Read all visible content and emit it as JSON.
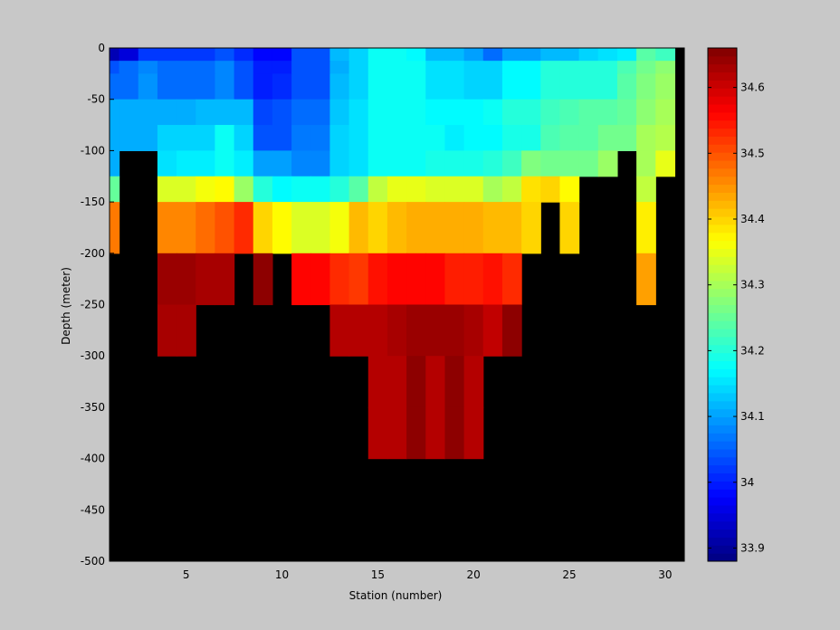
{
  "chart_data": {
    "type": "heatmap",
    "xlabel": "Station (number)",
    "ylabel": "Depth (meter)",
    "xlim": [
      1,
      31
    ],
    "ylim": [
      -500,
      0
    ],
    "x_ticks": [
      5,
      10,
      15,
      20,
      25,
      30
    ],
    "y_ticks": [
      0,
      -50,
      -100,
      -150,
      -200,
      -250,
      -300,
      -350,
      -400,
      -450,
      -500
    ],
    "stations": [
      1,
      2,
      3,
      4,
      5,
      6,
      7,
      8,
      9,
      10,
      11,
      12,
      13,
      14,
      15,
      16,
      17,
      18,
      19,
      20,
      21,
      22,
      23,
      24,
      25,
      26,
      27,
      28,
      29,
      30
    ],
    "depth_bins": [
      0,
      -12.5,
      -25,
      -50,
      -75,
      -100,
      -125,
      -150,
      -200,
      -250,
      -300,
      -350,
      -400
    ],
    "masked_color": "#000000",
    "values": [
      [
        33.92,
        33.95,
        34.02,
        34.02,
        34.02,
        34.02,
        34.04,
        34.01,
        33.98,
        33.98,
        34.04,
        34.04,
        34.12,
        34.14,
        34.18,
        34.18,
        34.17,
        34.12,
        34.12,
        34.1,
        34.06,
        34.1,
        34.1,
        34.12,
        34.12,
        34.14,
        34.15,
        34.16,
        34.24,
        34.22
      ],
      [
        34.04,
        34.06,
        34.08,
        34.06,
        34.06,
        34.06,
        34.08,
        34.04,
        34.0,
        34.0,
        34.04,
        34.04,
        34.11,
        34.14,
        34.18,
        34.18,
        34.18,
        34.15,
        34.15,
        34.14,
        34.14,
        34.17,
        34.17,
        34.2,
        34.2,
        34.2,
        34.2,
        34.23,
        34.26,
        34.28
      ],
      [
        34.06,
        34.06,
        34.09,
        34.06,
        34.06,
        34.06,
        34.08,
        34.04,
        34.0,
        34.01,
        34.04,
        34.04,
        34.12,
        34.14,
        34.18,
        34.18,
        34.18,
        34.15,
        34.15,
        34.14,
        34.14,
        34.17,
        34.17,
        34.2,
        34.2,
        34.2,
        34.2,
        34.24,
        34.27,
        34.29
      ],
      [
        34.11,
        34.11,
        34.11,
        34.11,
        34.11,
        34.12,
        34.12,
        34.12,
        34.03,
        34.04,
        34.06,
        34.06,
        34.13,
        34.15,
        34.18,
        34.18,
        34.18,
        34.17,
        34.17,
        34.17,
        34.18,
        34.2,
        34.2,
        34.22,
        34.23,
        34.24,
        34.24,
        34.25,
        34.28,
        34.3
      ],
      [
        34.11,
        34.11,
        34.11,
        34.14,
        34.14,
        34.14,
        34.18,
        34.14,
        34.04,
        34.04,
        34.07,
        34.07,
        34.14,
        34.15,
        34.18,
        34.18,
        34.18,
        34.18,
        34.16,
        34.17,
        34.17,
        34.19,
        34.19,
        34.23,
        34.24,
        34.24,
        34.26,
        34.26,
        34.3,
        34.31
      ],
      [
        34.11,
        null,
        null,
        34.15,
        34.16,
        34.16,
        34.18,
        34.16,
        34.1,
        34.1,
        34.08,
        34.08,
        34.14,
        34.15,
        34.18,
        34.18,
        34.18,
        34.19,
        34.19,
        34.19,
        34.2,
        34.22,
        34.27,
        34.26,
        34.26,
        34.26,
        34.29,
        null,
        34.3,
        34.35
      ],
      [
        34.25,
        null,
        null,
        34.34,
        34.34,
        34.36,
        34.37,
        34.29,
        34.2,
        34.17,
        34.18,
        34.18,
        34.2,
        34.24,
        34.32,
        34.35,
        34.35,
        34.34,
        34.34,
        34.34,
        34.3,
        34.32,
        34.39,
        34.4,
        34.37,
        null,
        null,
        null,
        34.32,
        null
      ],
      [
        34.47,
        null,
        null,
        34.46,
        34.46,
        34.48,
        34.5,
        34.53,
        34.4,
        34.37,
        34.34,
        34.34,
        34.36,
        34.42,
        34.4,
        34.42,
        34.43,
        34.43,
        34.43,
        34.43,
        34.42,
        34.42,
        34.4,
        null,
        34.4,
        null,
        null,
        null,
        34.38,
        null
      ],
      [
        null,
        null,
        null,
        34.64,
        34.64,
        34.63,
        34.63,
        null,
        34.65,
        null,
        34.56,
        34.56,
        34.53,
        34.52,
        34.55,
        34.56,
        34.56,
        34.56,
        34.54,
        34.54,
        34.55,
        34.53,
        null,
        null,
        null,
        null,
        null,
        null,
        34.44,
        null
      ],
      [
        null,
        null,
        null,
        34.63,
        34.63,
        null,
        null,
        null,
        null,
        null,
        null,
        null,
        34.62,
        34.62,
        34.62,
        34.63,
        34.64,
        34.64,
        34.64,
        34.63,
        34.61,
        34.65,
        null,
        null,
        null,
        null,
        null,
        null,
        null,
        null
      ],
      [
        null,
        null,
        null,
        null,
        null,
        null,
        null,
        null,
        null,
        null,
        null,
        null,
        null,
        null,
        34.62,
        34.62,
        34.65,
        34.62,
        34.65,
        34.62,
        null,
        null,
        null,
        null,
        null,
        null,
        null,
        null,
        null,
        null
      ],
      [
        null,
        null,
        null,
        null,
        null,
        null,
        null,
        null,
        null,
        null,
        null,
        null,
        null,
        null,
        34.62,
        34.62,
        34.65,
        34.62,
        34.65,
        34.62,
        null,
        null,
        null,
        null,
        null,
        null,
        null,
        null,
        null,
        null
      ]
    ],
    "colorbar": {
      "colormap": "jet",
      "clim": [
        33.88,
        34.66
      ],
      "ticks": [
        "33.9",
        "34",
        "34.1",
        "34.2",
        "34.3",
        "34.4",
        "34.5",
        "34.6"
      ],
      "tick_values": [
        33.9,
        34.0,
        34.1,
        34.2,
        34.3,
        34.4,
        34.5,
        34.6
      ]
    }
  }
}
